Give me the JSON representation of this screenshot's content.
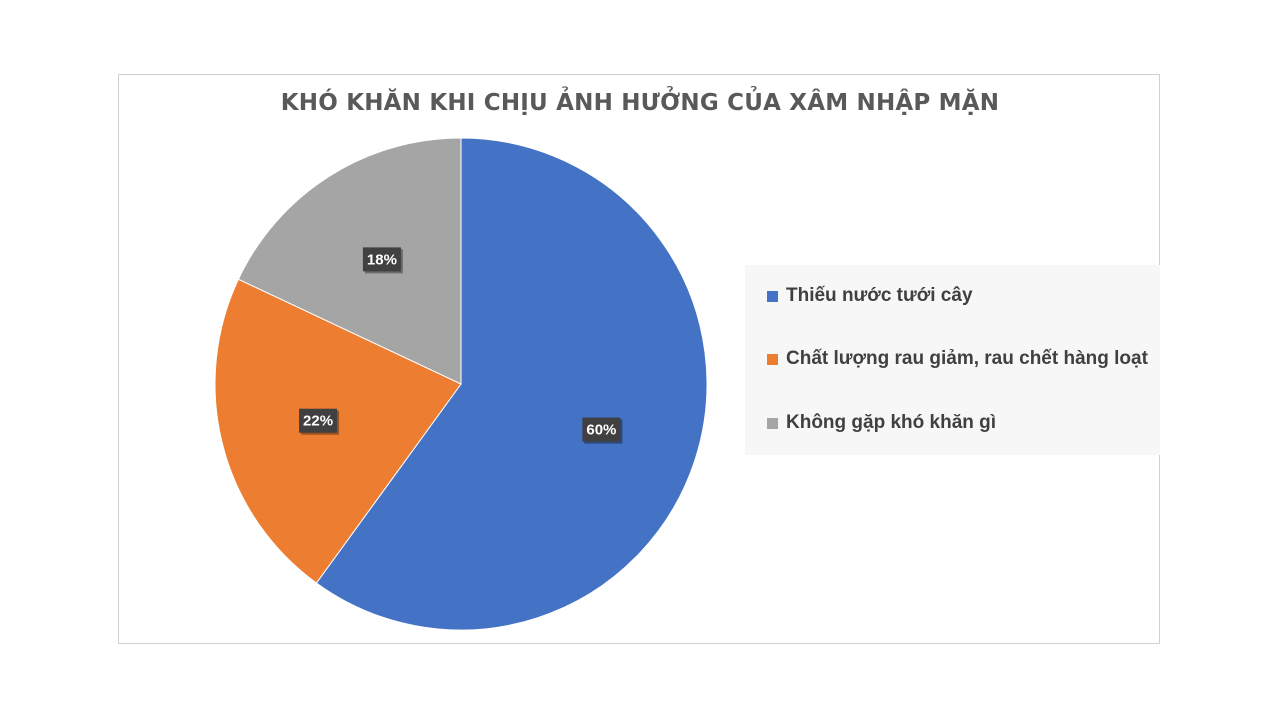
{
  "chart_data": {
    "type": "pie",
    "title": "KHÓ KHĂN KHI CHỊU ẢNH HƯỞNG CỦA XÂM NHẬP MẶN",
    "categories": [
      "Thiếu nước tưới cây",
      "Chất lượng rau giảm, rau chết hàng loạt",
      "Không gặp khó khăn gì"
    ],
    "values": [
      60,
      22,
      18
    ],
    "data_labels": [
      "60%",
      "22%",
      "18%"
    ],
    "colors": [
      "#4472c4",
      "#ed7d31",
      "#a5a5a5"
    ],
    "legend_position": "right"
  }
}
